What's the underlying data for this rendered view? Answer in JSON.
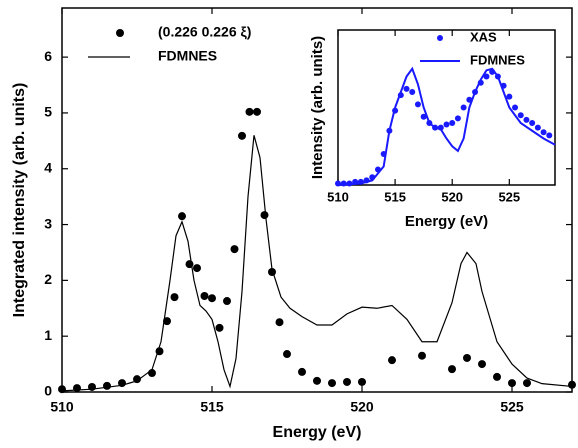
{
  "chart_data": [
    {
      "type": "line",
      "xlabel": "Energy (eV)",
      "ylabel": "Integrated intensity (arb. units)",
      "xlim": [
        510,
        527
      ],
      "xticks": [
        510,
        515,
        520,
        525
      ],
      "ylim": [
        0,
        6.88
      ],
      "yticks": [
        0,
        1,
        2,
        3,
        4,
        5,
        6
      ],
      "series": [
        {
          "name": "(0.226 0.226 ξ)",
          "type": "scatter",
          "color": "#000000",
          "x": [
            510,
            510.5,
            511,
            511.5,
            512,
            512.5,
            513,
            513.25,
            513.5,
            513.75,
            514,
            514.25,
            514.5,
            514.75,
            515,
            515.25,
            515.5,
            515.75,
            516,
            516.25,
            516.5,
            516.75,
            517,
            517.25,
            517.5,
            518,
            518.5,
            519,
            519.5,
            520,
            521,
            522,
            523,
            523.5,
            524,
            524.5,
            525,
            525.5,
            527
          ],
          "values": [
            0.05,
            0.07,
            0.09,
            0.11,
            0.16,
            0.23,
            0.34,
            0.73,
            1.27,
            1.7,
            3.15,
            2.29,
            2.22,
            1.72,
            1.68,
            1.15,
            1.63,
            2.56,
            4.59,
            5.02,
            5.02,
            3.17,
            2.15,
            1.25,
            0.68,
            0.36,
            0.2,
            0.16,
            0.18,
            0.18,
            0.57,
            0.65,
            0.41,
            0.61,
            0.5,
            0.27,
            0.16,
            0.16,
            0.13
          ]
        },
        {
          "name": "FDMNES",
          "type": "line",
          "color": "#000000",
          "x": [
            510,
            511,
            512,
            512.5,
            513,
            513.3,
            513.6,
            513.8,
            514,
            514.2,
            514.4,
            514.6,
            514.8,
            515,
            515.2,
            515.4,
            515.6,
            515.8,
            516,
            516.2,
            516.4,
            516.6,
            516.8,
            517,
            517.3,
            517.6,
            518,
            518.5,
            519,
            519.5,
            520,
            520.5,
            521,
            521.5,
            522,
            522.5,
            523,
            523.3,
            523.5,
            523.8,
            524,
            524.5,
            525,
            525.5,
            526,
            527
          ],
          "values": [
            0.02,
            0.05,
            0.12,
            0.2,
            0.4,
            0.9,
            2.0,
            2.8,
            3.05,
            2.7,
            2.0,
            1.55,
            1.45,
            1.3,
            0.9,
            0.4,
            0.1,
            0.6,
            1.8,
            3.5,
            4.6,
            4.2,
            3.1,
            2.2,
            1.7,
            1.5,
            1.35,
            1.2,
            1.2,
            1.4,
            1.52,
            1.5,
            1.55,
            1.3,
            0.9,
            0.9,
            1.6,
            2.3,
            2.5,
            2.3,
            1.8,
            0.9,
            0.5,
            0.25,
            0.15,
            0.1
          ]
        }
      ]
    },
    {
      "type": "line",
      "xlabel": "Energy (eV)",
      "ylabel": "Intensity (arb. units)",
      "xlim": [
        510,
        529
      ],
      "xticks": [
        510,
        515,
        520,
        525
      ],
      "ylim": [
        0,
        1
      ],
      "series": [
        {
          "name": "XAS",
          "type": "scatter",
          "color": "#1a1aff",
          "x": [
            510,
            510.5,
            511,
            511.5,
            512,
            512.5,
            513,
            513.5,
            514,
            514.5,
            515,
            515.5,
            516,
            516.5,
            517,
            517.5,
            518,
            518.5,
            519,
            519.5,
            520,
            520.5,
            521,
            521.5,
            522,
            522.5,
            523,
            523.5,
            524,
            524.5,
            525,
            525.5,
            526,
            526.5,
            527,
            527.5,
            528,
            528.5
          ],
          "values": [
            0.01,
            0.01,
            0.01,
            0.02,
            0.02,
            0.03,
            0.05,
            0.1,
            0.2,
            0.35,
            0.48,
            0.58,
            0.62,
            0.6,
            0.52,
            0.44,
            0.4,
            0.37,
            0.37,
            0.39,
            0.4,
            0.43,
            0.5,
            0.55,
            0.6,
            0.66,
            0.7,
            0.73,
            0.7,
            0.64,
            0.57,
            0.5,
            0.45,
            0.42,
            0.4,
            0.37,
            0.34,
            0.32
          ]
        },
        {
          "name": "FDMNES",
          "type": "line",
          "color": "#1a1aff",
          "x": [
            510,
            512,
            513,
            514,
            514.5,
            515,
            515.5,
            516,
            516.5,
            517,
            517.5,
            518,
            518.5,
            519,
            519.5,
            520,
            520.5,
            521,
            521.5,
            522,
            522.5,
            523,
            523.5,
            524,
            524.5,
            525,
            526,
            527,
            528,
            529
          ],
          "values": [
            0,
            0.01,
            0.03,
            0.12,
            0.35,
            0.5,
            0.6,
            0.7,
            0.75,
            0.65,
            0.5,
            0.4,
            0.37,
            0.36,
            0.3,
            0.25,
            0.22,
            0.3,
            0.5,
            0.6,
            0.68,
            0.74,
            0.75,
            0.7,
            0.6,
            0.5,
            0.4,
            0.35,
            0.3,
            0.26
          ]
        }
      ]
    }
  ]
}
